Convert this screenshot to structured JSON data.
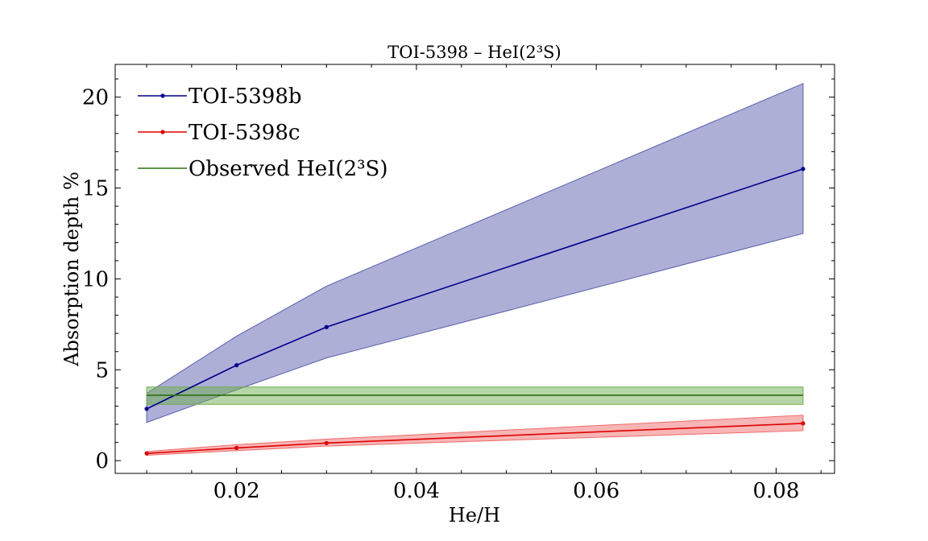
{
  "chart_data": {
    "type": "line",
    "title": "TOI-5398 – HeI(2³S)",
    "xlabel": "He/H",
    "ylabel": "Absorption depth %",
    "xlim": [
      0.0065,
      0.0865
    ],
    "ylim": [
      -0.7,
      21.8
    ],
    "x_ticks": [
      0.02,
      0.04,
      0.06,
      0.08
    ],
    "x_tick_labels": [
      "0.02",
      "0.04",
      "0.06",
      "0.08"
    ],
    "y_ticks": [
      0,
      5,
      10,
      15,
      20
    ],
    "y_tick_labels": [
      "0",
      "5",
      "10",
      "15",
      "20"
    ],
    "grid": false,
    "legend_position": "top-left",
    "series": [
      {
        "name": "TOI-5398b",
        "color": "#00008b",
        "band_color": "#5b5fae",
        "marker": true,
        "x": [
          0.01,
          0.02,
          0.03,
          0.083
        ],
        "y": [
          2.85,
          5.25,
          7.35,
          16.05
        ],
        "lower": [
          2.1,
          3.9,
          5.65,
          12.5
        ],
        "upper": [
          3.7,
          6.85,
          9.6,
          20.75
        ]
      },
      {
        "name": "TOI-5398c",
        "color": "#e00000",
        "band_color": "#ef6b6b",
        "marker": true,
        "x": [
          0.01,
          0.02,
          0.03,
          0.083
        ],
        "y": [
          0.4,
          0.7,
          0.97,
          2.05
        ],
        "lower": [
          0.3,
          0.55,
          0.8,
          1.65
        ],
        "upper": [
          0.5,
          0.88,
          1.18,
          2.5
        ]
      },
      {
        "name": "Observed HeI(2³S)",
        "color": "#2e6e12",
        "band_color": "#6fae4f",
        "marker": false,
        "x": [
          0.01,
          0.083
        ],
        "y": [
          3.6,
          3.6
        ],
        "lower": [
          3.1,
          3.1
        ],
        "upper": [
          4.05,
          4.05
        ]
      }
    ]
  }
}
